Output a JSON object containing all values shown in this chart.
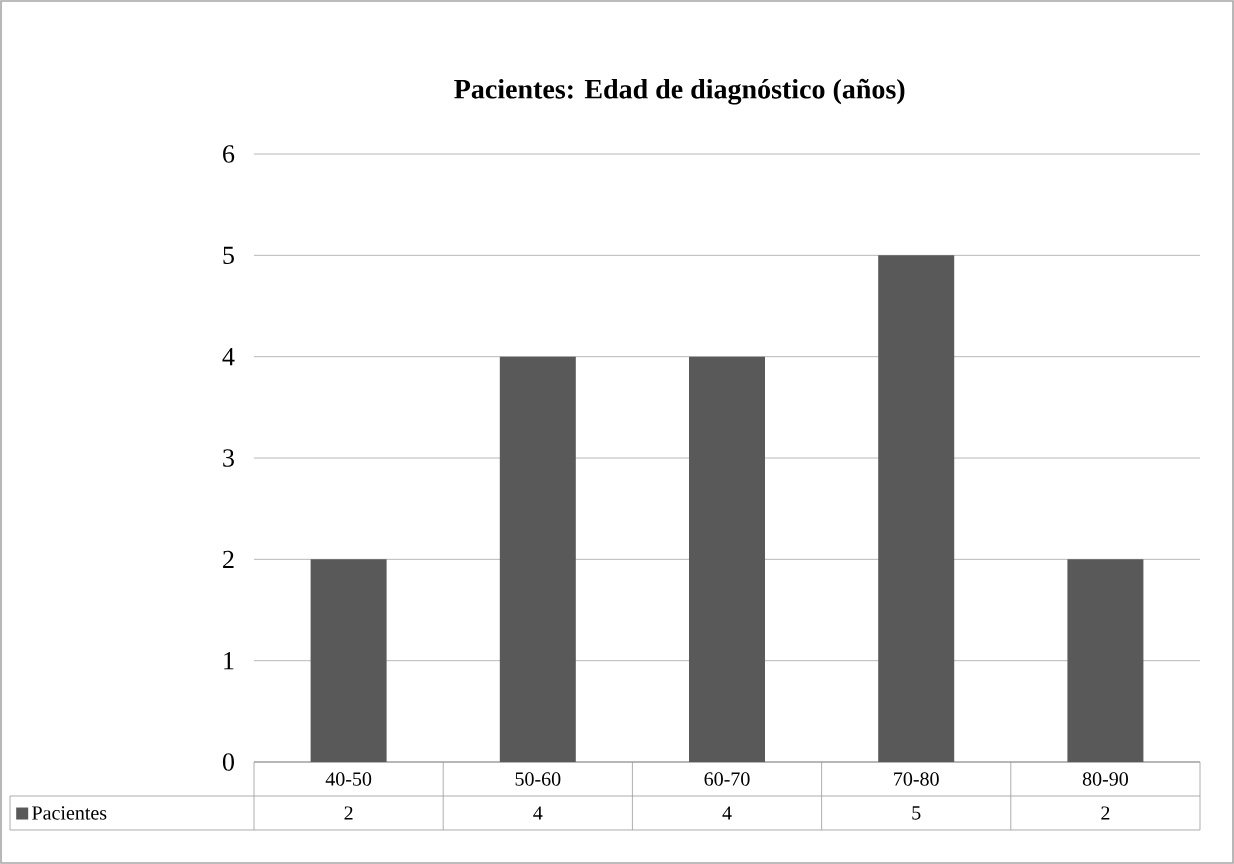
{
  "chart_data": {
    "type": "bar",
    "title": "Pacientes:  Edad de diagnóstico (años)",
    "categories": [
      "40-50",
      "50-60",
      "60-70",
      "70-80",
      "80-90"
    ],
    "series": [
      {
        "name": "Pacientes",
        "color": "#595959",
        "values": [
          2,
          4,
          4,
          5,
          2
        ]
      }
    ],
    "ylim": [
      0,
      6
    ],
    "yticks": [
      0,
      1,
      2,
      3,
      4,
      5,
      6
    ],
    "grid": "y",
    "legend": "bottom",
    "data_labels": true
  }
}
